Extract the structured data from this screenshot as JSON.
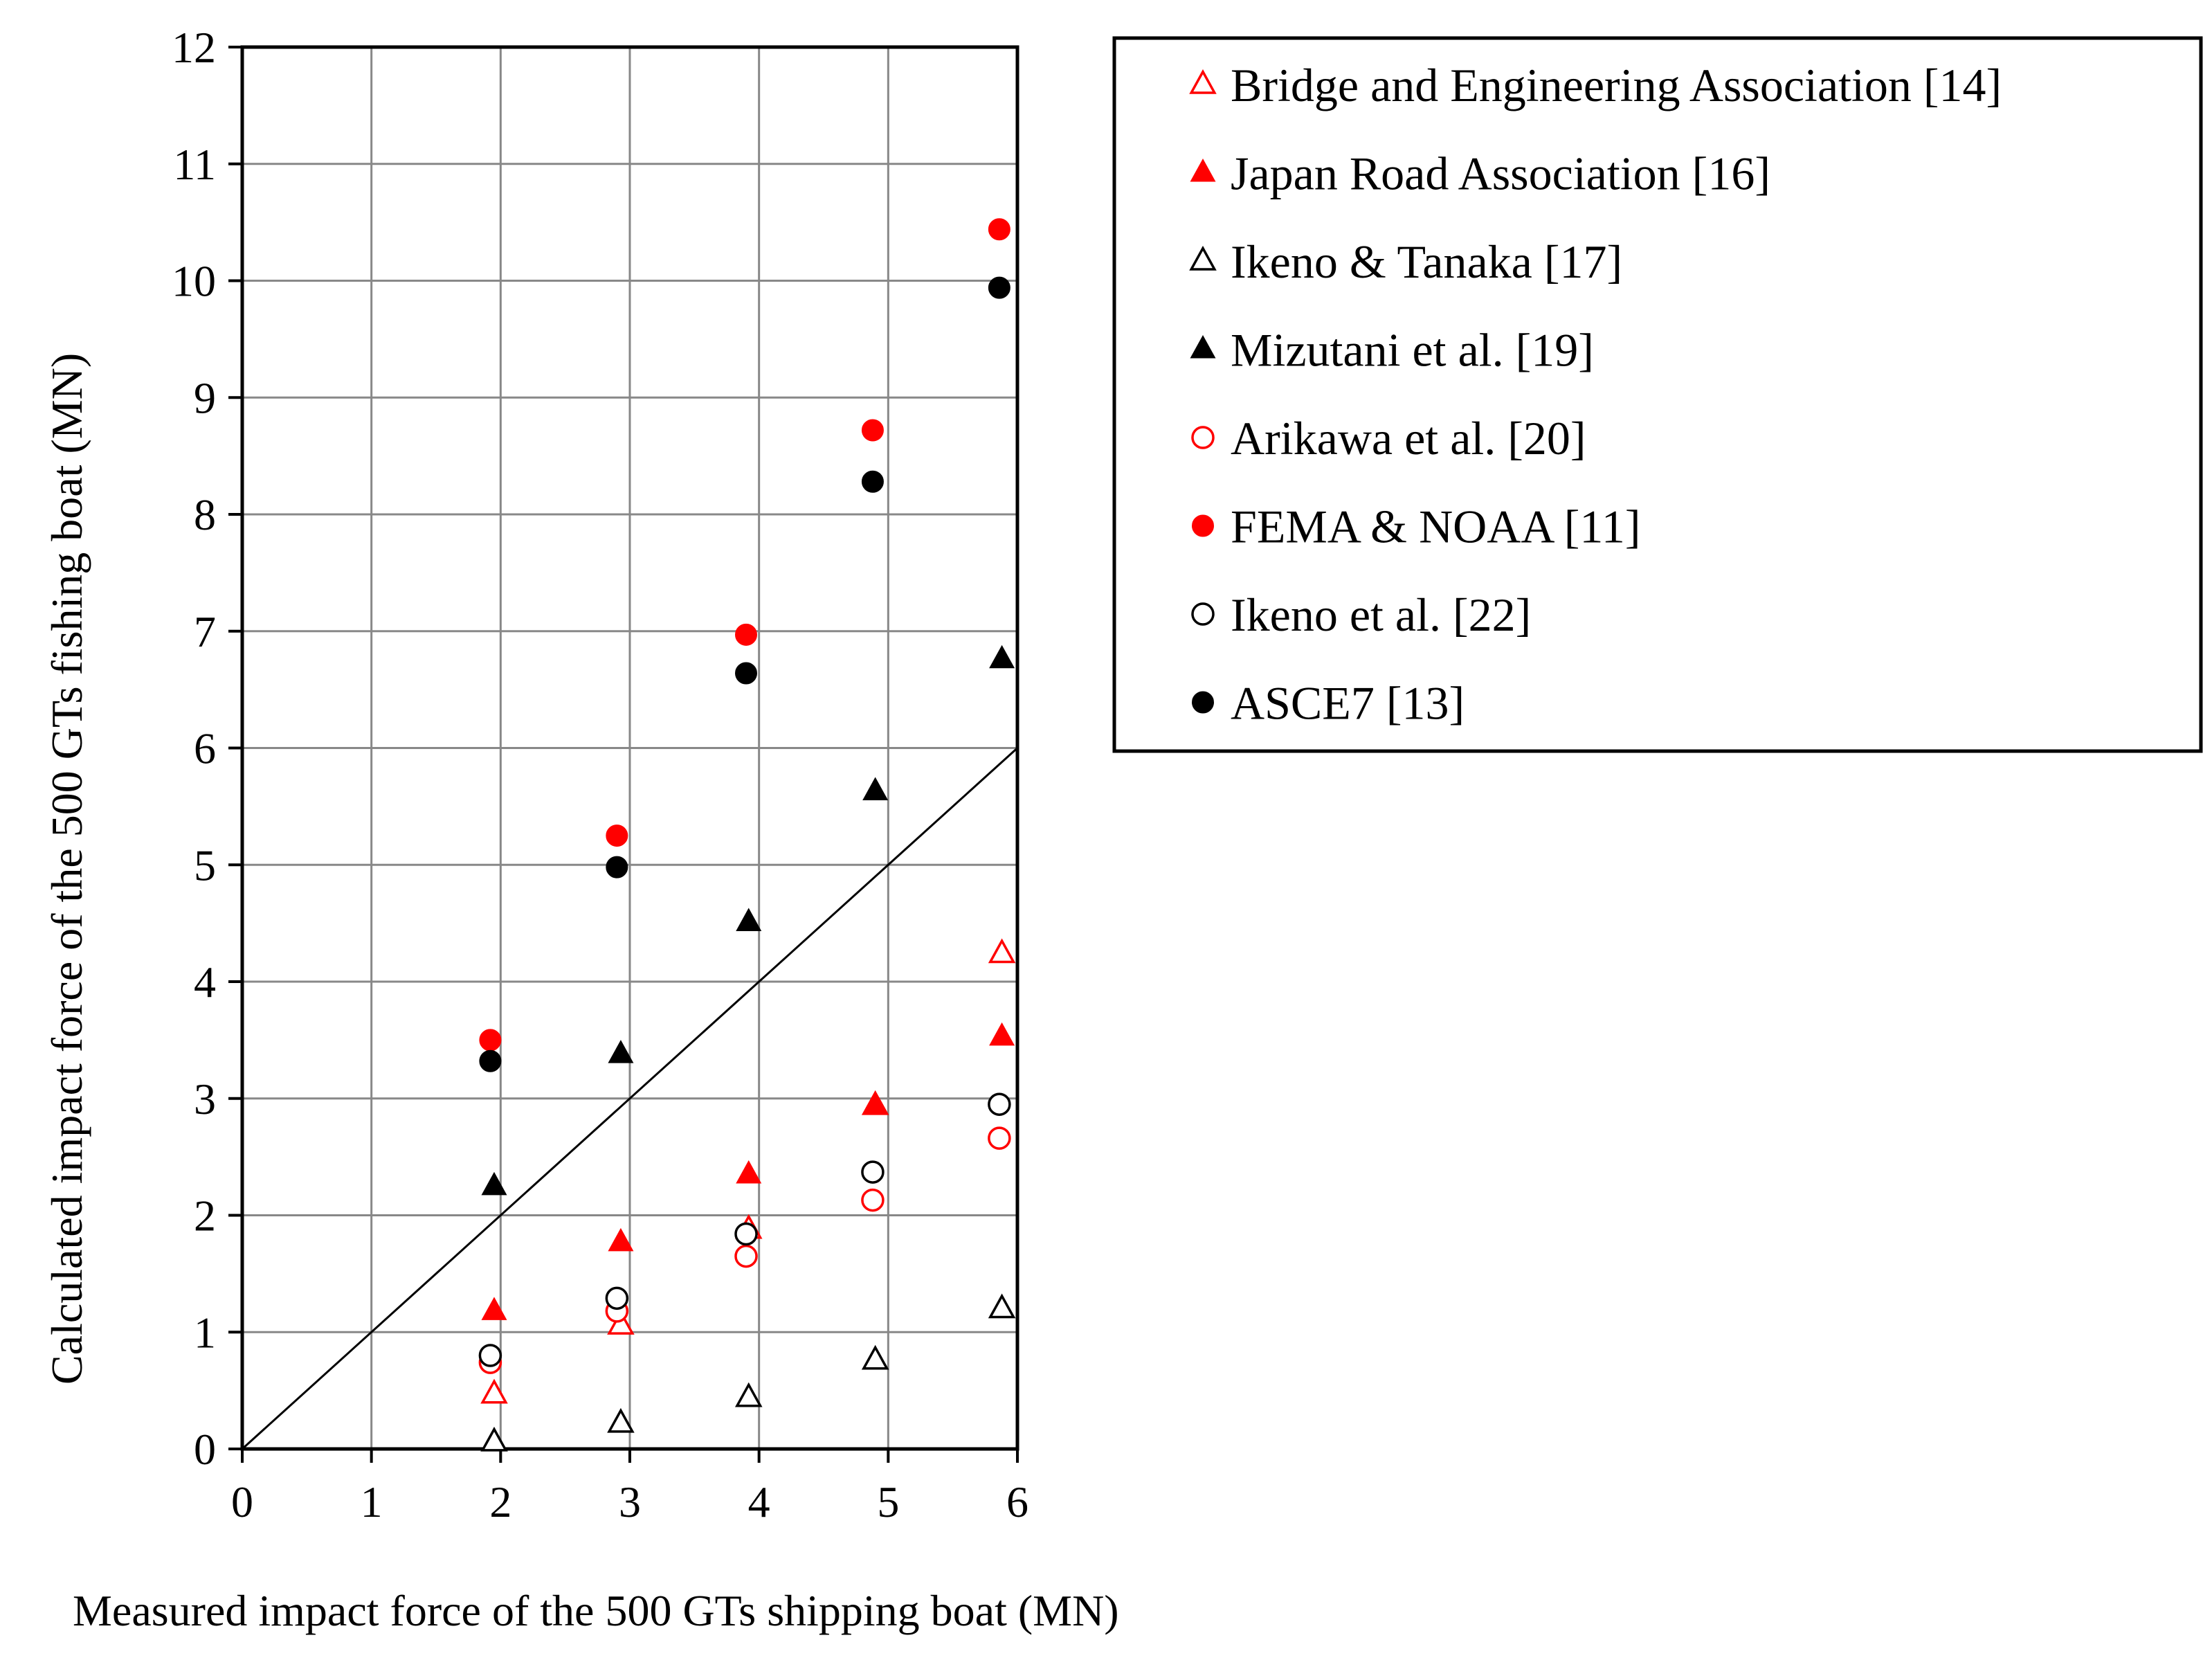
{
  "chart_data": {
    "type": "scatter",
    "title": "",
    "xlabel": "Measured impact force of the 500 GTs shipping boat (MN)",
    "ylabel": "Calculated impact force of the 500 GTs fishing boat (MN)",
    "xlim": [
      0,
      6
    ],
    "ylim": [
      0,
      12
    ],
    "xticks": [
      "0",
      "1",
      "2",
      "3",
      "4",
      "5",
      "6"
    ],
    "yticks": [
      "0",
      "1",
      "2",
      "3",
      "4",
      "5",
      "6",
      "7",
      "8",
      "9",
      "10",
      "11",
      "12"
    ],
    "grid": true,
    "reference_line": {
      "from": [
        0,
        0
      ],
      "to": [
        6,
        6
      ]
    },
    "legend_position": "right",
    "series": [
      {
        "name": "Bridge and Engineering Association [14]",
        "marker": "triangle-open",
        "color": "#ff0000",
        "x": [
          1.95,
          2.93,
          3.92,
          4.9,
          5.88
        ],
        "y": [
          0.47,
          1.06,
          1.88,
          2.94,
          4.24
        ]
      },
      {
        "name": "Japan Road Association [16]",
        "marker": "triangle-filled",
        "color": "#ff0000",
        "x": [
          1.95,
          2.93,
          3.92,
          4.9,
          5.88
        ],
        "y": [
          1.18,
          1.77,
          2.35,
          2.94,
          3.53
        ]
      },
      {
        "name": "Ikeno & Tanaka [17]",
        "marker": "triangle-open",
        "color": "#000000",
        "x": [
          1.95,
          2.93,
          3.92,
          4.9,
          5.88
        ],
        "y": [
          0.06,
          0.22,
          0.44,
          0.76,
          1.2
        ]
      },
      {
        "name": "Mizutani et al. [19]",
        "marker": "triangle-filled",
        "color": "#000000",
        "x": [
          1.95,
          2.93,
          3.92,
          4.9,
          5.88
        ],
        "y": [
          2.25,
          3.38,
          4.51,
          5.63,
          6.76
        ]
      },
      {
        "name": "Arikawa et al. [20]",
        "marker": "circle-open",
        "color": "#ff0000",
        "x": [
          1.92,
          2.9,
          3.9,
          4.88,
          5.86
        ],
        "y": [
          0.74,
          1.18,
          1.65,
          2.13,
          2.66
        ]
      },
      {
        "name": "FEMA & NOAA [11]",
        "marker": "circle-filled",
        "color": "#ff0000",
        "x": [
          1.92,
          2.9,
          3.9,
          4.88,
          5.86
        ],
        "y": [
          3.5,
          5.25,
          6.97,
          8.72,
          10.44
        ]
      },
      {
        "name": "Ikeno et al. [22]",
        "marker": "circle-open",
        "color": "#000000",
        "x": [
          1.92,
          2.9,
          3.9,
          4.88,
          5.86
        ],
        "y": [
          0.8,
          1.29,
          1.84,
          2.37,
          2.95
        ]
      },
      {
        "name": "ASCE7 [13]",
        "marker": "circle-filled",
        "color": "#000000",
        "x": [
          1.92,
          2.9,
          3.9,
          4.88,
          5.86
        ],
        "y": [
          3.32,
          4.98,
          6.64,
          8.28,
          9.94
        ]
      }
    ]
  }
}
